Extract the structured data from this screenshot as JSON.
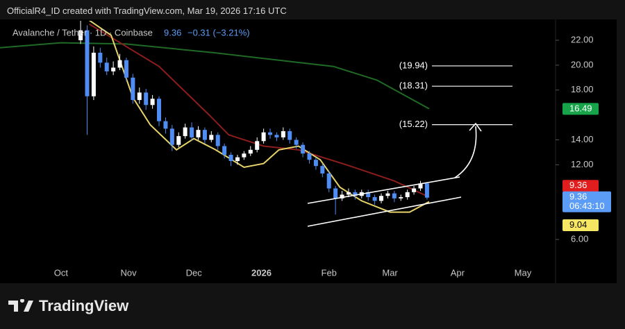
{
  "header": "OfficialR4_ID created with TradingView.com, Mar 19, 2026 17:16 UTC",
  "footer": "TradingView",
  "chart_data": {
    "type": "candlestick",
    "symbol": "Avalanche / Tether · 1D · Coinbase",
    "last_price": "9.36",
    "change": "−0.31 (−3.21%)",
    "up_color": "#ffffff",
    "down_color": "#4f8df5",
    "x": [
      9,
      12,
      15,
      18,
      21,
      24,
      27,
      30,
      33,
      36,
      39,
      42,
      45,
      48,
      51,
      54,
      57,
      60,
      63,
      66,
      69,
      72,
      75,
      78,
      81,
      84,
      87,
      90,
      93,
      96,
      99,
      102,
      105,
      108,
      111,
      114,
      117,
      120,
      123,
      126,
      129,
      132,
      135,
      138,
      141,
      144,
      147,
      150,
      153,
      156,
      159,
      162,
      165,
      168
    ],
    "open": [
      22.0,
      22.8,
      17.5,
      21.0,
      20.2,
      19.5,
      19.8,
      20.4,
      19.0,
      17.2,
      17.8,
      16.8,
      17.3,
      15.5,
      14.9,
      13.6,
      14.3,
      15.0,
      14.2,
      14.8,
      14.0,
      14.4,
      13.5,
      12.8,
      12.3,
      12.6,
      12.9,
      13.2,
      13.9,
      14.6,
      14.4,
      14.2,
      14.7,
      14.0,
      13.6,
      12.9,
      12.4,
      11.9,
      11.3,
      10.1,
      9.3,
      9.6,
      9.8,
      9.5,
      9.8,
      9.4,
      9.1,
      9.5,
      9.7,
      9.3,
      9.4,
      9.8,
      10.1,
      10.5
    ],
    "high": [
      23.6,
      23.2,
      21.5,
      21.4,
      20.6,
      20.3,
      20.9,
      20.6,
      19.3,
      18.2,
      18.1,
      17.6,
      17.5,
      15.8,
      15.2,
      14.6,
      15.3,
      15.4,
      15.1,
      15.0,
      14.7,
      14.6,
      13.7,
      13.0,
      12.8,
      13.1,
      13.5,
      14.2,
      14.9,
      14.9,
      14.6,
      15.0,
      14.9,
      14.2,
      13.8,
      13.1,
      12.6,
      12.1,
      11.5,
      10.3,
      9.9,
      10.1,
      10.0,
      10.0,
      10.0,
      9.6,
      9.7,
      9.9,
      9.9,
      9.6,
      10.0,
      10.3,
      10.7,
      10.6
    ],
    "low": [
      21.7,
      14.4,
      17.2,
      19.8,
      19.2,
      19.2,
      19.6,
      18.7,
      16.9,
      16.9,
      16.4,
      16.5,
      15.1,
      14.5,
      13.1,
      13.4,
      14.1,
      13.9,
      14.0,
      13.7,
      13.8,
      13.2,
      12.5,
      11.9,
      12.0,
      12.4,
      12.7,
      13.0,
      13.7,
      14.1,
      13.9,
      14.0,
      13.7,
      13.3,
      12.6,
      12.1,
      11.6,
      11.0,
      9.8,
      8.0,
      9.1,
      9.4,
      9.2,
      9.3,
      9.1,
      8.8,
      8.9,
      9.3,
      9.0,
      9.1,
      9.2,
      9.6,
      9.9,
      9.2
    ],
    "close": [
      22.8,
      17.5,
      21.0,
      20.2,
      19.5,
      19.8,
      20.4,
      19.0,
      17.2,
      17.8,
      16.8,
      17.3,
      15.5,
      14.9,
      13.6,
      14.3,
      15.0,
      14.2,
      14.8,
      14.0,
      14.4,
      13.5,
      12.8,
      12.3,
      12.6,
      12.9,
      13.2,
      13.9,
      14.6,
      14.4,
      14.2,
      14.7,
      14.0,
      13.6,
      12.9,
      12.4,
      11.9,
      11.3,
      10.1,
      9.3,
      9.6,
      9.8,
      9.5,
      9.8,
      9.4,
      9.1,
      9.5,
      9.7,
      9.3,
      9.4,
      9.8,
      10.1,
      10.5,
      9.36
    ],
    "overlays": [
      {
        "color": "#1f6b25",
        "x": [
          -28,
          0,
          30,
          70,
          100,
          125,
          145,
          169
        ],
        "values": [
          21.4,
          21.8,
          21.7,
          21.0,
          20.4,
          19.9,
          18.8,
          16.5
        ]
      },
      {
        "color": "#8e1d1d",
        "x": [
          13,
          45,
          68,
          77,
          93,
          109,
          131,
          153,
          169
        ],
        "values": [
          23.3,
          19.9,
          16.0,
          14.4,
          13.5,
          13.2,
          12.0,
          10.7,
          9.4
        ]
      },
      {
        "color": "#e8d36a",
        "x": [
          13,
          23,
          33,
          41,
          53,
          61,
          71,
          84,
          93,
          100,
          109,
          119,
          128,
          138,
          151,
          160,
          169
        ],
        "values": [
          23.6,
          22.4,
          17.4,
          15.2,
          13.2,
          14.1,
          13.2,
          11.8,
          12.1,
          13.2,
          13.5,
          12.4,
          10.2,
          9.1,
          8.2,
          8.2,
          9.04
        ]
      }
    ],
    "xlim": [
      -28,
      227
    ],
    "xticks": [
      {
        "value": 0,
        "label": "Oct"
      },
      {
        "value": 31,
        "label": "Nov"
      },
      {
        "value": 61,
        "label": "Dec"
      },
      {
        "value": 92,
        "label": "2026"
      },
      {
        "value": 123,
        "label": "Feb"
      },
      {
        "value": 151,
        "label": "Mar"
      },
      {
        "value": 182,
        "label": "Apr"
      },
      {
        "value": 212,
        "label": "May"
      }
    ],
    "ylim": [
      4.05,
      23.56
    ],
    "yticks": [
      {
        "value": 6,
        "label": "6.00"
      },
      {
        "value": 12,
        "label": "12.00"
      },
      {
        "value": 14,
        "label": "14.00"
      },
      {
        "value": 18,
        "label": "18.00"
      },
      {
        "value": 20,
        "label": "20.00"
      },
      {
        "value": 22,
        "label": "22.00"
      }
    ],
    "annotations": [
      {
        "value": 19.94,
        "label": "(19.94)"
      },
      {
        "value": 18.31,
        "label": "(18.31)"
      },
      {
        "value": 15.22,
        "label": "(15.22)"
      }
    ],
    "price_tags": [
      {
        "value": 16.49,
        "label": "16.49",
        "color": "#16a34a"
      },
      {
        "value": 9.36,
        "label": "9.36",
        "color": "#e11d1d"
      },
      {
        "value": 9.36,
        "label": "9.36",
        "sub": "06:43:10",
        "color": "#5b9cf6"
      },
      {
        "value": 9.04,
        "label": "9.04",
        "color": "#f5e663"
      }
    ]
  }
}
